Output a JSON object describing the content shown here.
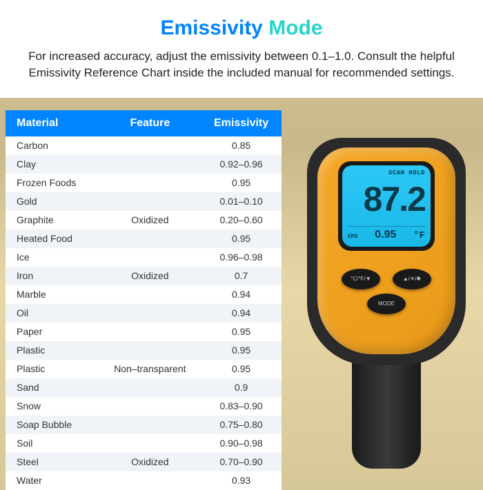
{
  "header": {
    "title_part1": "Emissivity",
    "title_part2": "Mode",
    "title_color1": "#0084ff",
    "title_color2": "#24d4ce",
    "description": "For increased accuracy, adjust the emissivity between 0.1–1.0. Consult the helpful Emissivity Reference Chart inside the included manual for recommended settings."
  },
  "table": {
    "header_bg": "#0084ff",
    "columns": [
      "Material",
      "Feature",
      "Emissivity"
    ],
    "rows": [
      [
        "Carbon",
        "",
        "0.85"
      ],
      [
        "Clay",
        "",
        "0.92–0.96"
      ],
      [
        "Frozen Foods",
        "",
        "0.95"
      ],
      [
        "Gold",
        "",
        "0.01–0.10"
      ],
      [
        "Graphite",
        "Oxidized",
        "0.20–0.60"
      ],
      [
        "Heated Food",
        "",
        "0.95"
      ],
      [
        "Ice",
        "",
        "0.96–0.98"
      ],
      [
        "Iron",
        "Oxidized",
        "0.7"
      ],
      [
        "Marble",
        "",
        "0.94"
      ],
      [
        "Oil",
        "",
        "0.94"
      ],
      [
        "Paper",
        "",
        "0.95"
      ],
      [
        "Plastic",
        "",
        "0.95"
      ],
      [
        "Plastic",
        "Non–transparent",
        "0.95"
      ],
      [
        "Sand",
        "",
        "0.9"
      ],
      [
        "Snow",
        "",
        "0.83–0.90"
      ],
      [
        "Soap Bubble",
        "",
        "0.75–0.80"
      ],
      [
        "Soil",
        "",
        "0.90–0.98"
      ],
      [
        "Steel",
        "Oxidized",
        "0.70–0.90"
      ],
      [
        "Water",
        "",
        "0.93"
      ]
    ]
  },
  "device": {
    "scan_hold": "SCAN HOLD",
    "main_temp": "87.2",
    "ems_label": "EMS",
    "ems_value": "0.95",
    "unit": "°F",
    "body_color": "#f5a623",
    "screen_bg": "#2dc8f5",
    "buttons": {
      "left": "°C/°F/▼",
      "right": "▲/☀/✱",
      "mode": "MODE"
    }
  }
}
